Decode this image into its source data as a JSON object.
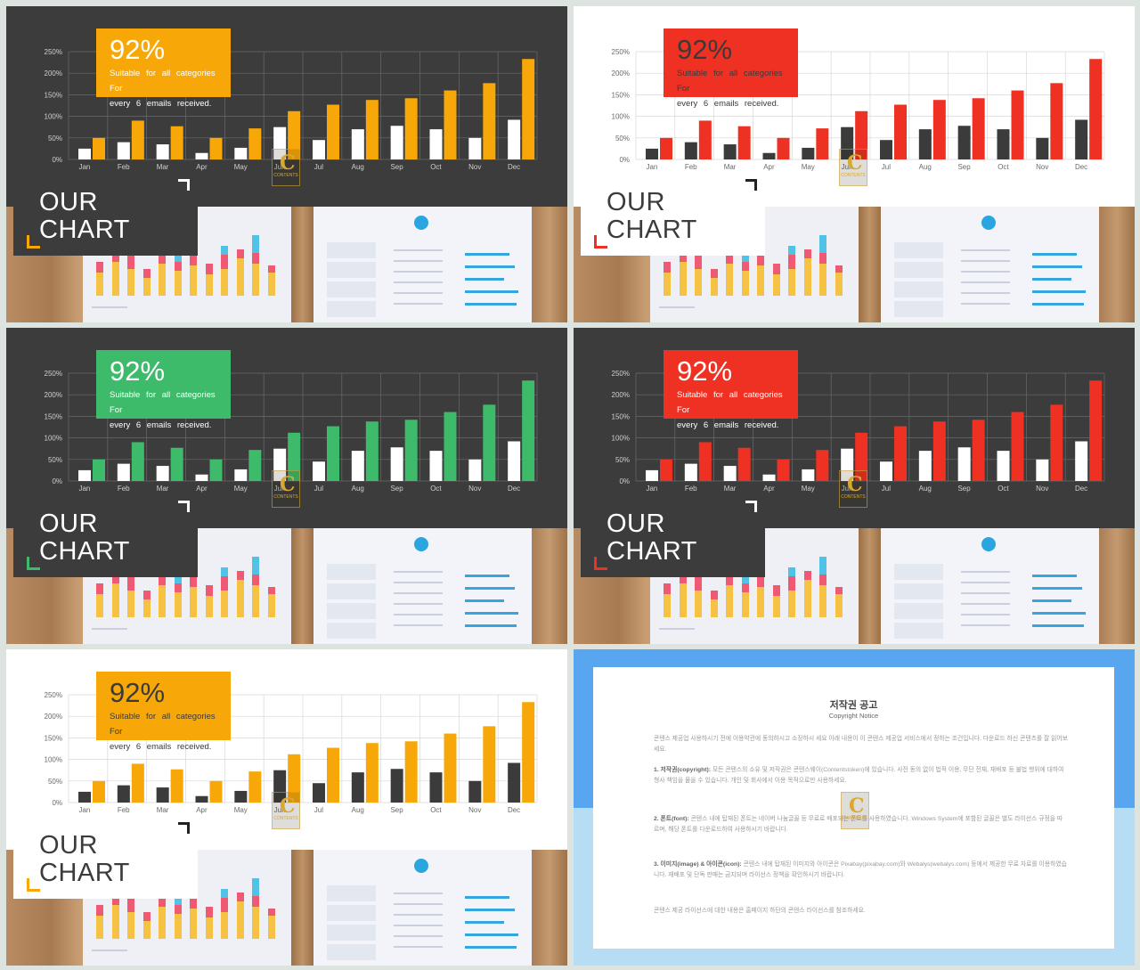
{
  "badge": {
    "percent": "92%",
    "line1": "Suitable for all categories For",
    "line2": "every 6 emails received."
  },
  "title": {
    "line1": "OUR",
    "line2": "CHART"
  },
  "logo": {
    "mark": "C",
    "text": "CONTENTS"
  },
  "chart_data": {
    "type": "bar",
    "categories": [
      "Jan",
      "Feb",
      "Mar",
      "Apr",
      "May",
      "Jun",
      "Jul",
      "Aug",
      "Sep",
      "Oct",
      "Nov",
      "Dec"
    ],
    "yticks": [
      "0%",
      "50%",
      "100%",
      "150%",
      "200%",
      "250%"
    ],
    "ylim": [
      0,
      250
    ],
    "grid": true,
    "series": [
      {
        "values": [
          25,
          40,
          35,
          15,
          27,
          75,
          45,
          70,
          78,
          70,
          50,
          92
        ]
      },
      {
        "values": [
          50,
          90,
          77,
          50,
          72,
          112,
          127,
          138,
          142,
          160,
          177,
          233
        ]
      }
    ]
  },
  "slides": [
    {
      "theme": "dark",
      "accent": "#f7a808",
      "accent_text": "#ffffff"
    },
    {
      "theme": "light",
      "accent": "#ef3124",
      "accent_text": "#3a3a3a"
    },
    {
      "theme": "dark",
      "accent": "#3dbb6b",
      "accent_text": "#ffffff"
    },
    {
      "theme": "dark",
      "accent": "#ef3124",
      "accent_text": "#ffffff"
    },
    {
      "theme": "light",
      "accent": "#f7a808",
      "accent_text": "#3a3a3a"
    }
  ],
  "notice": {
    "title": "저작권 공고",
    "subtitle": "Copyright Notice",
    "intro": "콘텐스 제공업 사용하시기 전에 이용약관에 동의하시고 소장하시 세요 아래 내용이 이 콘텐스 제공업 서비스에서 정하는 조건입니다. 다운로드 하신 콘텐츠를 잘 읽어보세요.",
    "p1_head": "1. 저작권(copyright):",
    "p1_body": " 모든 콘텐스의 소유 및 저작권은 콘텐스웨이(Contentstoken)에 있습니다. 사전 동의 없이 법적 이용, 무단 전재, 재배포 등 불법 행위에 대하여 형사 책임을 물을 수 있습니다. 개인 및 회사에서 이용 목적으로만 사용하세요.",
    "p2_head": "2. 폰트(font):",
    "p2_body": " 콘텐스 내에 탑재된 폰트는 네이버 나눔글꼴 등 무료로 배포되는 폰트를 사용하였습니다. Windows System에 포함된 글꼴은 별도 라이선스 규정을 따르며, 해당 폰트를 다운로드하여 사용하시기 바랍니다.",
    "p3_head": "3. 이미지(image) & 아이콘(icon):",
    "p3_body": " 콘텐스 내에 탑재된 이미지와 아이콘은 Pixabay(pixabay.com)와 Webalys(webalys.com) 등에서 제공한 무료 자료를 이용하였습니다. 재배포 및 단독 판매는 금지되며 라이선스 정책을 확인하시기 바랍니다.",
    "outro": "콘텐스 제공 라이선스에 대한 내용은 홈페이지 하단의 콘텐스 라이선스를 참조하세요."
  }
}
